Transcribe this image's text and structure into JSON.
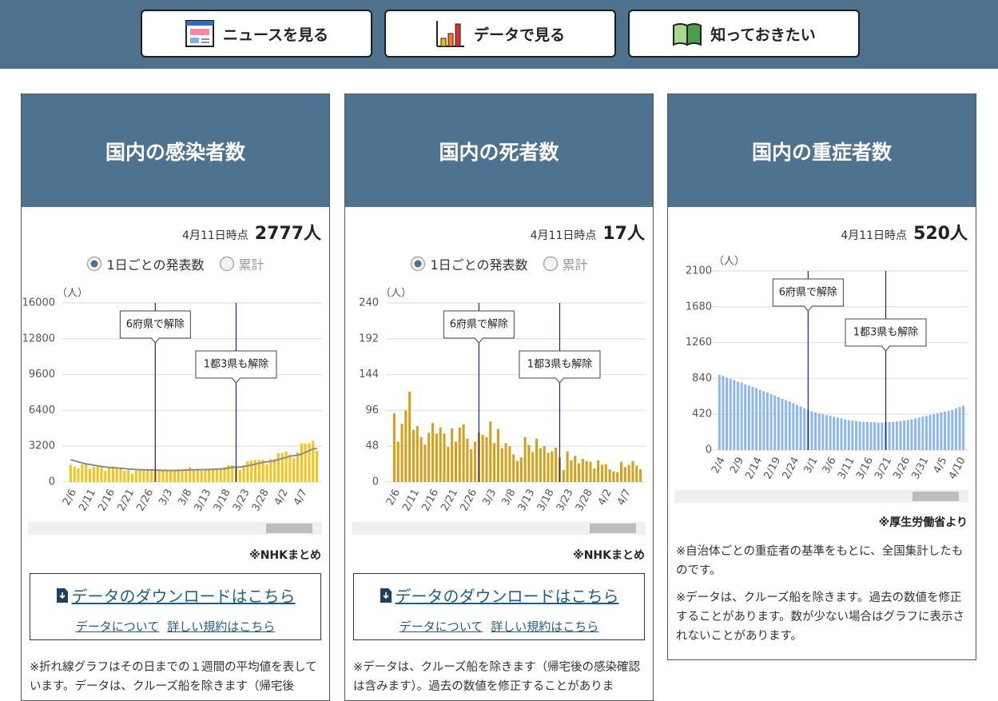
{
  "nav": [
    {
      "label": "ニュースを見る"
    },
    {
      "label": "データで見る"
    },
    {
      "label": "知っておきたい"
    }
  ],
  "panels": [
    {
      "title": "国内の感染者数",
      "as_of": "4月11日時点",
      "total": "2777人",
      "radios": [
        "1日ごとの発表数",
        "累計"
      ],
      "chart": {
        "type": "bar",
        "y_label": "（人）",
        "ylim": [
          0,
          16000
        ],
        "yticks": [
          0,
          3200,
          6400,
          9600,
          12800,
          16000
        ],
        "categories": [
          "2/6",
          null,
          null,
          null,
          null,
          "2/11",
          null,
          null,
          null,
          null,
          "2/16",
          null,
          null,
          null,
          null,
          "2/21",
          null,
          null,
          null,
          null,
          "2/26",
          null,
          null,
          null,
          null,
          "3/3",
          null,
          null,
          null,
          null,
          "3/8",
          null,
          null,
          null,
          null,
          "3/13",
          null,
          null,
          null,
          null,
          "3/18",
          null,
          null,
          null,
          null,
          "3/23",
          null,
          null,
          null,
          null,
          "3/28",
          null,
          null,
          null,
          null,
          "4/2",
          null,
          null,
          null,
          null,
          "4/7",
          null,
          null,
          null,
          null
        ],
        "series": [
          {
            "type": "bar",
            "color": "#f6c21c",
            "values": [
              1531,
              1387,
              1218,
              1569,
              1614,
              1177,
              1350,
              1359,
              1308,
              1003,
              1301,
              1404,
              1312,
              1210,
              1006,
              1089,
              740,
              1014,
              1066,
              1141,
              1025,
              989,
              1011,
              1033,
              1050,
              981,
              1041,
              1007,
              1142,
              1051,
              1154,
              1324,
              1115,
              1124,
              1000,
              1041,
              1064,
              1078,
              1190,
              1195,
              1301,
              1499,
              1500,
              1330,
              1068,
              1517,
              1866,
              1926,
              1981,
              1976,
              1988,
              1558,
              2045,
              2065,
              2580,
              2581,
              2723,
              2460,
              2136,
              2652,
              3442,
              3447,
              3463,
              3677,
              2777
            ]
          },
          {
            "type": "line",
            "color": "#8a8a8a",
            "values": [
              2000,
              1900,
              1800,
              1700,
              1620,
              1560,
              1500,
              1440,
              1390,
              1340,
              1300,
              1280,
              1260,
              1230,
              1200,
              1170,
              1140,
              1110,
              1100,
              1090,
              1080,
              1070,
              1060,
              1050,
              1040,
              1040,
              1030,
              1030,
              1040,
              1050,
              1060,
              1080,
              1090,
              1100,
              1100,
              1110,
              1120,
              1130,
              1150,
              1170,
              1200,
              1250,
              1300,
              1320,
              1340,
              1380,
              1450,
              1520,
              1600,
              1680,
              1760,
              1800,
              1850,
              1900,
              2000,
              2100,
              2200,
              2300,
              2350,
              2400,
              2500,
              2650,
              2800,
              2950,
              3000
            ]
          }
        ],
        "annotations": [
          {
            "text": "6府県で解除",
            "at": 22
          },
          {
            "text": "1都3県も解除",
            "at": 43
          }
        ]
      },
      "source": "※NHKまとめ",
      "download": "データのダウンロードはこちら",
      "links": [
        "データについて",
        "詳しい規約はこちら"
      ],
      "notes": [
        "※折れ線グラフはその日までの１週間の平均値を表しています。データは、クルーズ船を除きます（帰宅後"
      ]
    },
    {
      "title": "国内の死者数",
      "as_of": "4月11日時点",
      "total": "17人",
      "radios": [
        "1日ごとの発表数",
        "累計"
      ],
      "chart": {
        "type": "bar",
        "y_label": "（人）",
        "ylim": [
          0,
          240
        ],
        "yticks": [
          0,
          48,
          96,
          144,
          192,
          240
        ],
        "categories": [
          "2/6",
          null,
          null,
          null,
          null,
          "2/11",
          null,
          null,
          null,
          null,
          "2/16",
          null,
          null,
          null,
          null,
          "2/21",
          null,
          null,
          null,
          null,
          "2/26",
          null,
          null,
          null,
          null,
          "3/3",
          null,
          null,
          null,
          null,
          "3/8",
          null,
          null,
          null,
          null,
          "3/13",
          null,
          null,
          null,
          null,
          "3/18",
          null,
          null,
          null,
          null,
          "3/23",
          null,
          null,
          null,
          null,
          "3/28",
          null,
          null,
          null,
          null,
          "4/2",
          null,
          null,
          null,
          null,
          "4/7",
          null,
          null,
          null,
          null
        ],
        "series": [
          {
            "type": "bar",
            "color": "#d4a11c",
            "values": [
              92,
              54,
              78,
              96,
              121,
              70,
              75,
              60,
              50,
              66,
              79,
              65,
              73,
              65,
              47,
              72,
              54,
              73,
              77,
              58,
              44,
              54,
              66,
              63,
              60,
              81,
              52,
              71,
              45,
              52,
              48,
              37,
              28,
              33,
              60,
              50,
              40,
              58,
              45,
              48,
              39,
              41,
              46,
              33,
              16,
              41,
              29,
              35,
              25,
              31,
              28,
              27,
              18,
              29,
              23,
              24,
              17,
              14,
              13,
              27,
              20,
              23,
              28,
              22,
              17
            ]
          }
        ],
        "annotations": [
          {
            "text": "6府県で解除",
            "at": 22
          },
          {
            "text": "1都3県も解除",
            "at": 43
          }
        ]
      },
      "source": "※NHKまとめ",
      "download": "データのダウンロードはこちら",
      "links": [
        "データについて",
        "詳しい規約はこちら"
      ],
      "notes": [
        "※データは、クルーズ船を除きます（帰宅後の感染確認は含みます）。過去の数値を修正することがありま"
      ]
    },
    {
      "title": "国内の重症者数",
      "as_of": "4月11日時点",
      "total": "520人",
      "chart": {
        "type": "bar",
        "y_label": "（人）",
        "ylim": [
          0,
          2100
        ],
        "yticks": [
          0,
          420,
          840,
          1260,
          1680,
          2100
        ],
        "categories": [
          "2/4",
          null,
          null,
          null,
          null,
          "2/9",
          null,
          null,
          null,
          null,
          "2/14",
          null,
          null,
          null,
          null,
          "2/19",
          null,
          null,
          null,
          null,
          "2/24",
          null,
          null,
          null,
          null,
          "3/1",
          null,
          null,
          null,
          null,
          "3/6",
          null,
          null,
          null,
          null,
          "3/11",
          null,
          null,
          null,
          null,
          "3/16",
          null,
          null,
          null,
          null,
          "3/21",
          null,
          null,
          null,
          null,
          "3/26",
          null,
          null,
          null,
          null,
          "3/31",
          null,
          null,
          null,
          null,
          "4/5",
          null,
          null,
          null,
          null,
          "4/10",
          null
        ],
        "series": [
          {
            "type": "bar",
            "color": "#8db6ef",
            "values": [
              880,
              868,
              850,
              835,
              820,
              800,
              790,
              770,
              755,
              740,
              725,
              705,
              690,
              675,
              655,
              640,
              620,
              600,
              585,
              570,
              550,
              530,
              510,
              490,
              470,
              455,
              440,
              430,
              420,
              410,
              400,
              390,
              380,
              370,
              360,
              350,
              345,
              340,
              335,
              330,
              330,
              325,
              325,
              320,
              320,
              325,
              330,
              330,
              335,
              340,
              345,
              350,
              360,
              370,
              380,
              390,
              400,
              410,
              420,
              430,
              440,
              450,
              460,
              470,
              490,
              505,
              520
            ]
          }
        ],
        "annotations": [
          {
            "text": "6府県で解除",
            "at": 24
          },
          {
            "text": "1都3県も解除",
            "at": 45
          }
        ]
      },
      "source": "※厚生労働省より",
      "notes": [
        "※自治体ごとの重症者の基準をもとに、全国集計したものです。",
        "※データは、クルーズ船を除きます。過去の数値を修正することがあります。数が少ない場合はグラフに表示されないことがあります。"
      ]
    }
  ]
}
